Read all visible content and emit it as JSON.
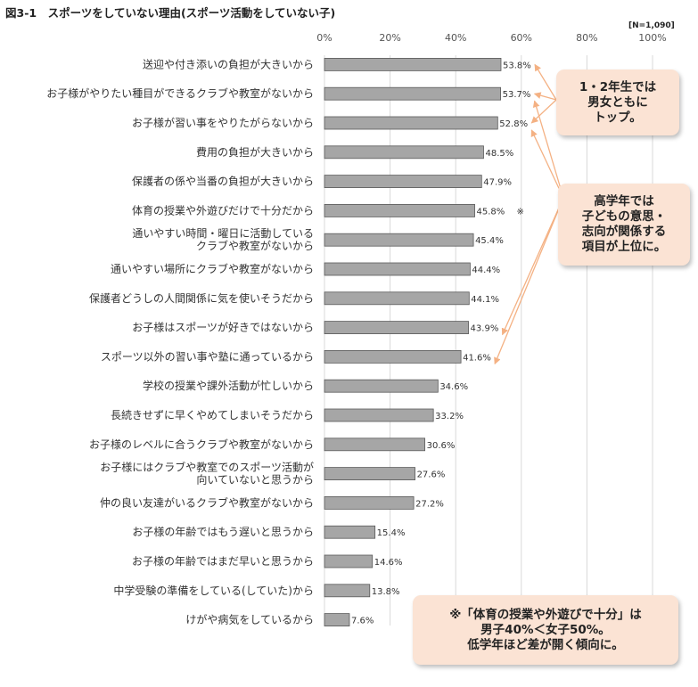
{
  "title": "図3-1　スポーツをしていない理由(スポーツ活動をしていない子)",
  "sample_note": "[N=1,090]",
  "chart_data": {
    "type": "bar",
    "orientation": "horizontal",
    "title": "図3-1　スポーツをしていない理由(スポーツ活動をしていない子)",
    "xlim": [
      0,
      100
    ],
    "ticks": [
      "0%",
      "20%",
      "40%",
      "60%",
      "80%",
      "100%"
    ],
    "tick_values": [
      0,
      20,
      40,
      60,
      80,
      100
    ],
    "grid": true,
    "categories": [
      [
        "送迎や付き添いの負担が大きいから"
      ],
      [
        "お子様がやりたい種目ができるクラブや教室がないから"
      ],
      [
        "お子様が習い事をやりたがらないから"
      ],
      [
        "費用の負担が大きいから"
      ],
      [
        "保護者の係や当番の負担が大きいから"
      ],
      [
        "体育の授業や外遊びだけで十分だから"
      ],
      [
        "通いやすい時間・曜日に活動している",
        "クラブや教室がないから"
      ],
      [
        "通いやすい場所にクラブや教室がないから"
      ],
      [
        "保護者どうしの人間関係に気を使いそうだから"
      ],
      [
        "お子様はスポーツが好きではないから"
      ],
      [
        "スポーツ以外の習い事や塾に通っているから"
      ],
      [
        "学校の授業や課外活動が忙しいから"
      ],
      [
        "長続きせずに早くやめてしまいそうだから"
      ],
      [
        "お子様のレベルに合うクラブや教室がないから"
      ],
      [
        "お子様にはクラブや教室でのスポーツ活動が",
        "向いていないと思うから"
      ],
      [
        "仲の良い友達がいるクラブや教室がないから"
      ],
      [
        "お子様の年齢ではもう遅いと思うから"
      ],
      [
        "お子様の年齢ではまだ早いと思うから"
      ],
      [
        "中学受験の準備をしている(していた)から"
      ],
      [
        "けがや病気をしているから"
      ]
    ],
    "values": [
      53.8,
      53.7,
      52.8,
      48.5,
      47.9,
      45.8,
      45.4,
      44.4,
      44.1,
      43.9,
      41.6,
      34.6,
      33.2,
      30.6,
      27.6,
      27.2,
      15.4,
      14.6,
      13.8,
      7.6
    ],
    "value_labels": [
      "53.8%",
      "53.7%",
      "52.8%",
      "48.5%",
      "47.9%",
      "45.8%",
      "45.4%",
      "44.4%",
      "44.1%",
      "43.9%",
      "41.6%",
      "34.6%",
      "33.2%",
      "30.6%",
      "27.6%",
      "27.2%",
      "15.4%",
      "14.6%",
      "13.8%",
      "7.6%"
    ],
    "marker_on_index": 5,
    "marker": "※",
    "annotations": [
      {
        "text": "1・2年生では\n男女ともに\nトップ。",
        "points_to": [
          0,
          1,
          2
        ]
      },
      {
        "text": "高学年では\n子どもの意思・\n志向が関係する\n項目が上位に。",
        "points_to": [
          1,
          2,
          9,
          10
        ]
      },
      {
        "text": "※「体育の授業や外遊びで十分」は\n男子40%＜女子50%。\n低学年ほど差が開く傾向に。",
        "points_to": []
      }
    ]
  },
  "colors": {
    "bar": "#a6a6a6",
    "bar_edge": "#595959",
    "note_bg": "#fbe3d4",
    "arrow": "#f4b183",
    "grid": "#d9d9d9"
  }
}
